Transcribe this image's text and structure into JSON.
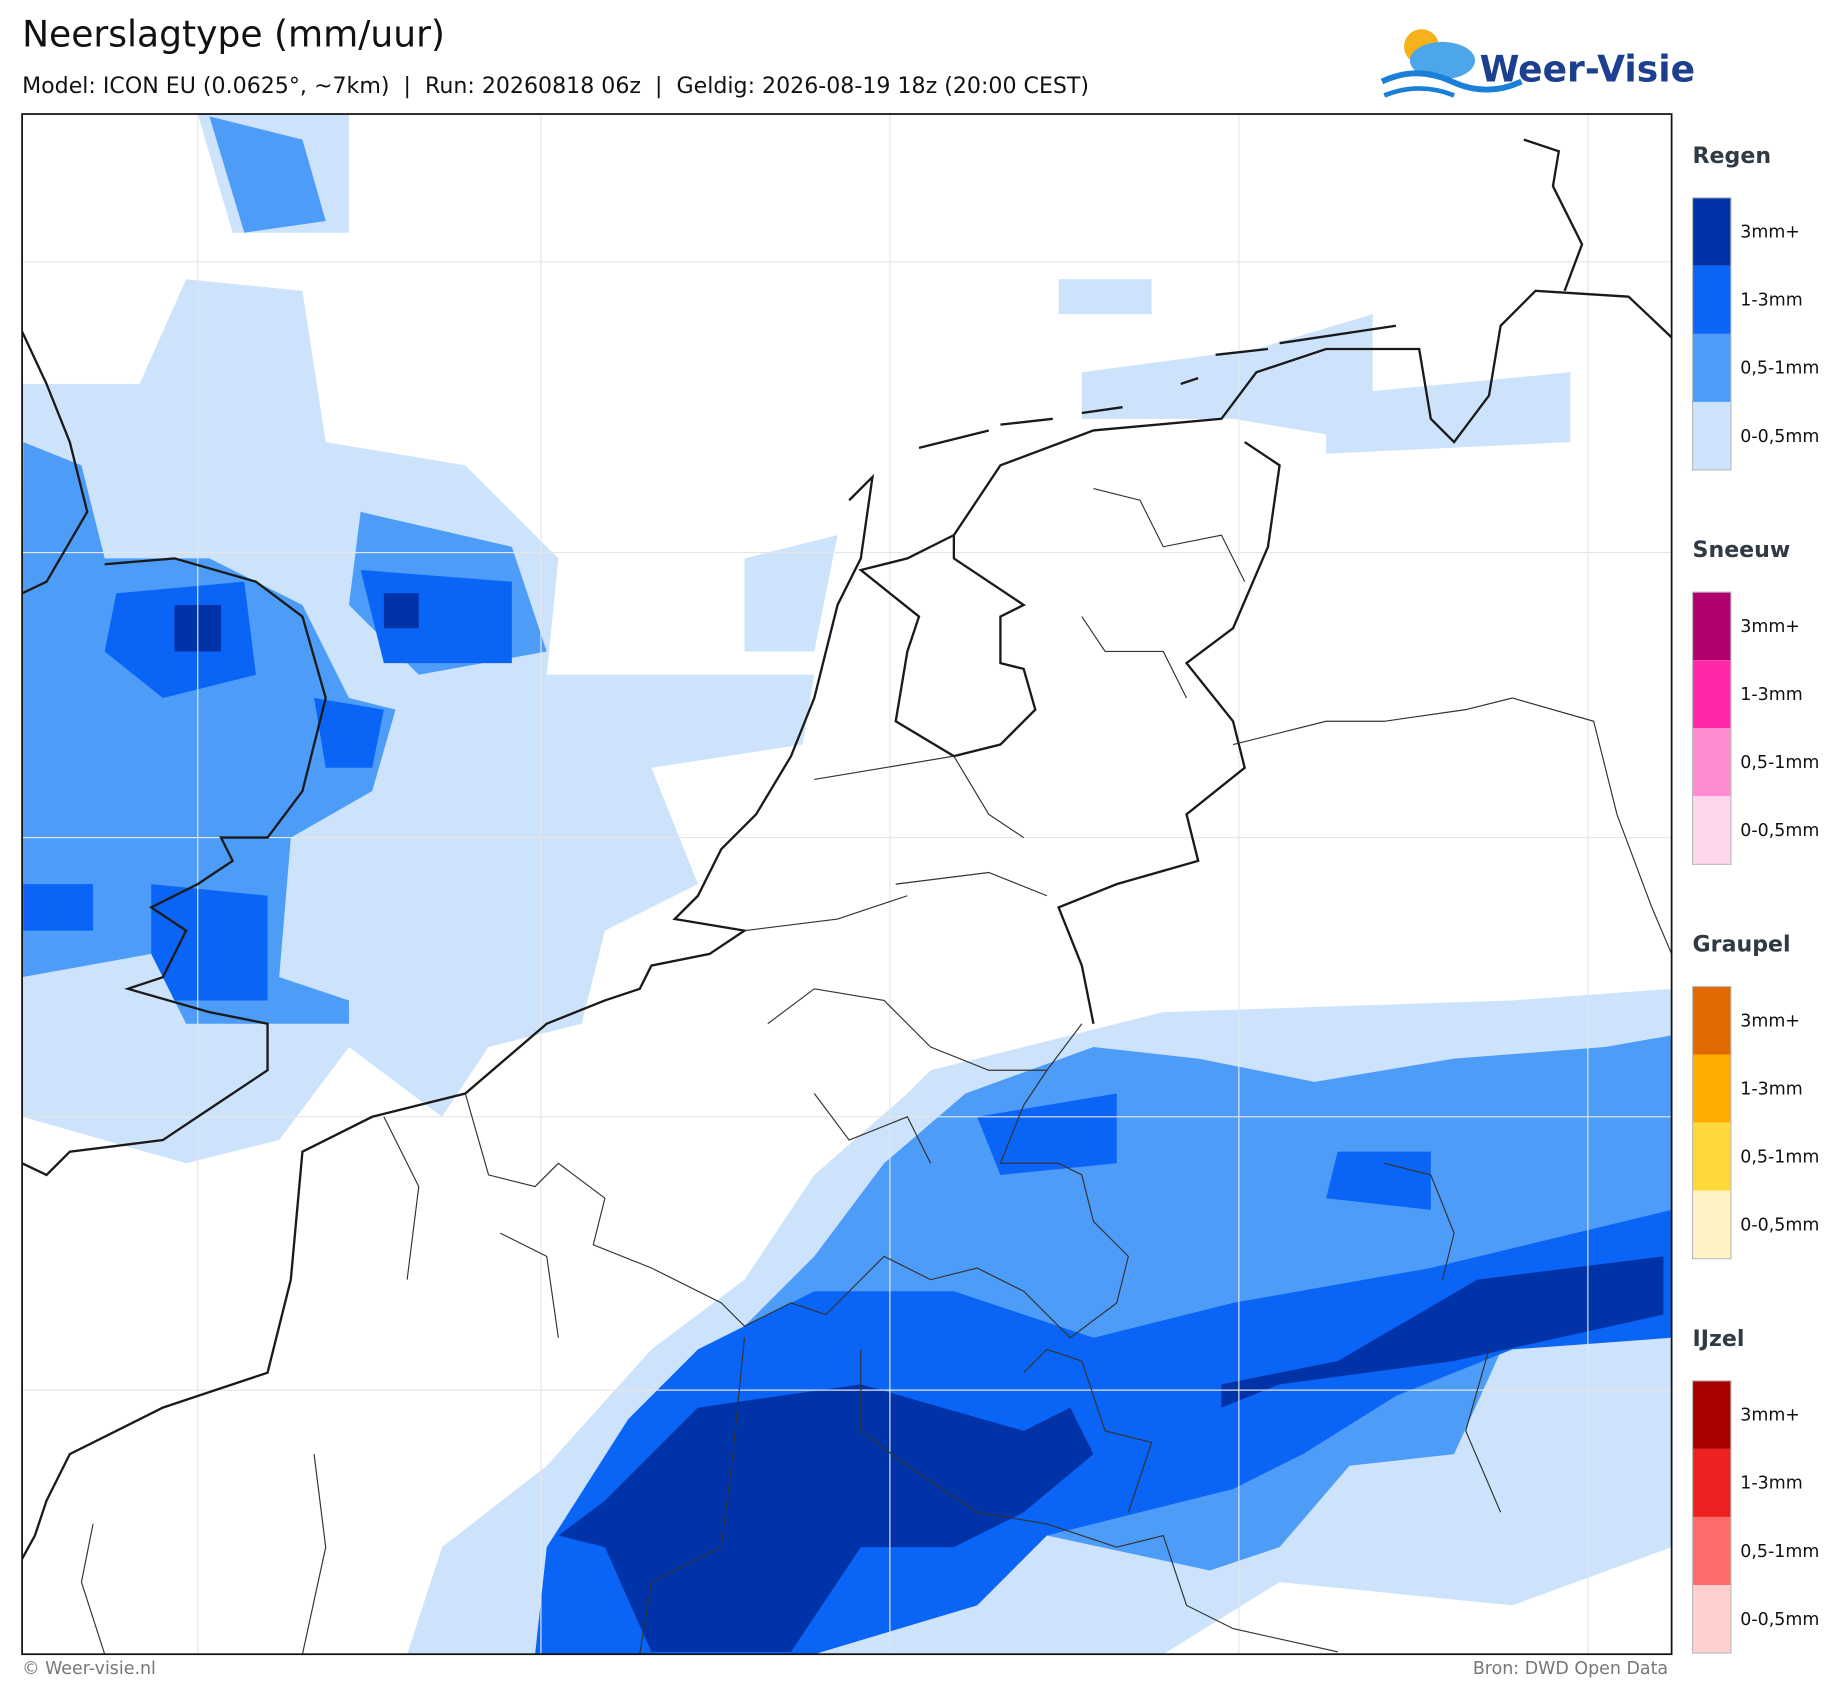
{
  "header": {
    "title": "Neerslagtype (mm/uur)",
    "subtitle": "Model: ICON EU (0.0625°, ~7km)  |  Run: 20260818 06z  |  Geldig: 2026-08-19 18z (20:00 CEST)",
    "logo": "Weer-Visie"
  },
  "legend": [
    {
      "name": "Regen",
      "items": [
        {
          "label": "3mm+",
          "color": "#0033a8"
        },
        {
          "label": "1-3mm",
          "color": "#0a64f5"
        },
        {
          "label": "0,5-1mm",
          "color": "#4d9cf7"
        },
        {
          "label": "0-0,5mm",
          "color": "#cce3fb"
        }
      ]
    },
    {
      "name": "Sneeuw",
      "items": [
        {
          "label": "3mm+",
          "color": "#b0006e"
        },
        {
          "label": "1-3mm",
          "color": "#ff28a8"
        },
        {
          "label": "0,5-1mm",
          "color": "#ff8cd0"
        },
        {
          "label": "0-0,5mm",
          "color": "#ffd6ee"
        }
      ]
    },
    {
      "name": "Graupel",
      "items": [
        {
          "label": "3mm+",
          "color": "#e06a00"
        },
        {
          "label": "1-3mm",
          "color": "#ffab00"
        },
        {
          "label": "0,5-1mm",
          "color": "#ffd83a"
        },
        {
          "label": "0-0,5mm",
          "color": "#fff3c6"
        }
      ]
    },
    {
      "name": "IJzel",
      "items": [
        {
          "label": "3mm+",
          "color": "#a80000"
        },
        {
          "label": "1-3mm",
          "color": "#ee2020"
        },
        {
          "label": "0,5-1mm",
          "color": "#ff6b6b"
        },
        {
          "label": "0-0,5mm",
          "color": "#ffcfcf"
        }
      ]
    }
  ],
  "footer": {
    "copyright": "© Weer-visie.nl",
    "source": "Bron: DWD Open Data"
  }
}
